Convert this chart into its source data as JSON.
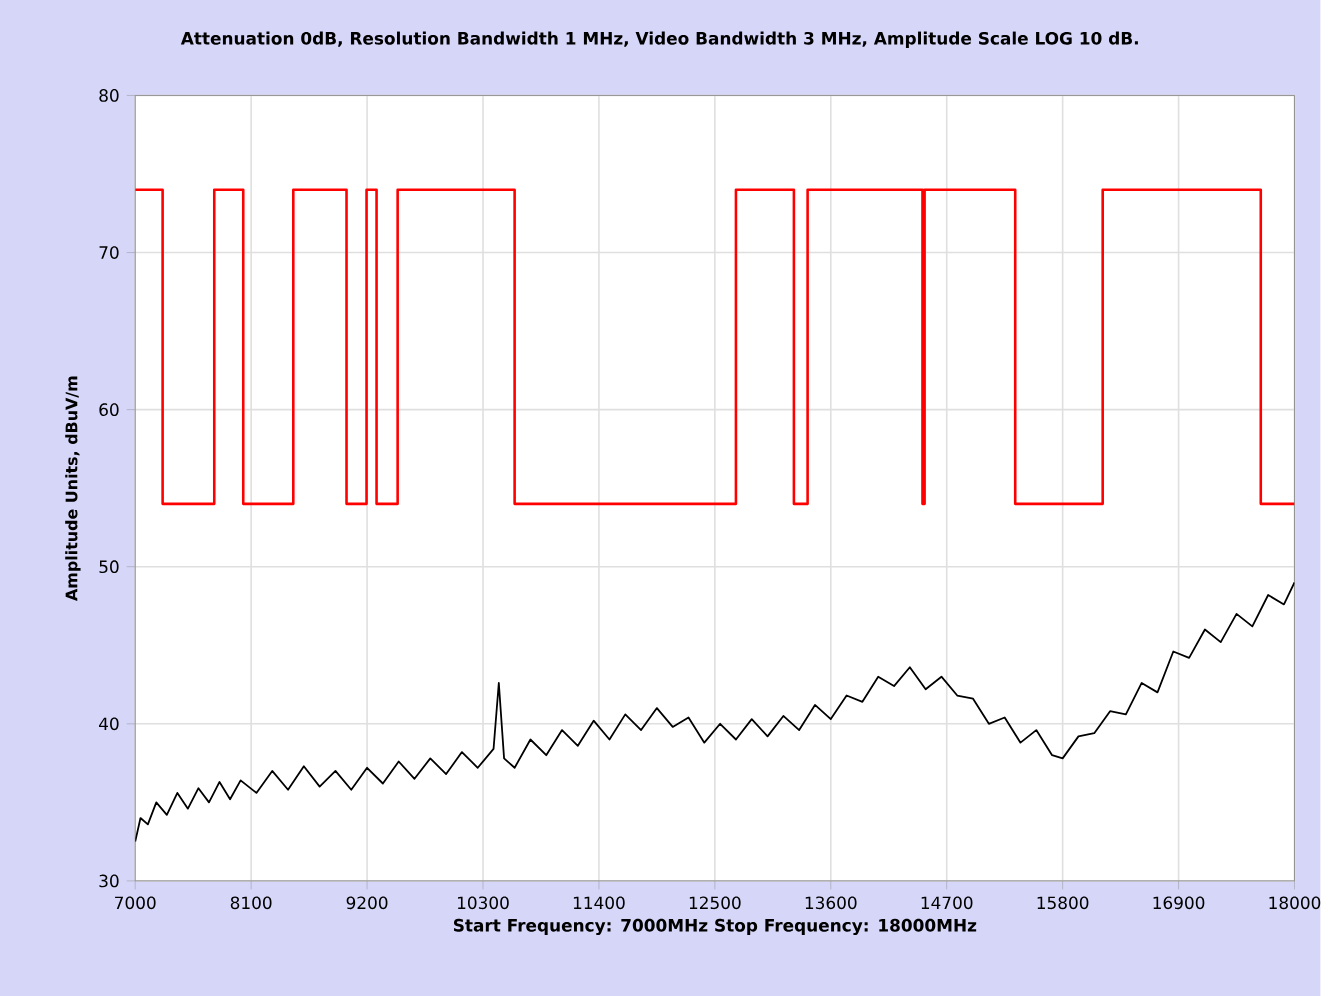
{
  "chart_data": {
    "type": "line",
    "title": "Attenuation 0dB, Resolution Bandwidth 1 MHz, Video Bandwidth 3 MHz, Amplitude Scale LOG 10 dB.",
    "xlabel": "Start Frequency: 7000MHz     Stop Frequency: 18000MHz",
    "ylabel": "Amplitude Units, dBuV/m",
    "xlim": [
      7000,
      18000
    ],
    "xticks": [
      7000,
      8100,
      9200,
      10300,
      11400,
      12500,
      13600,
      14700,
      15800,
      16900,
      18000
    ],
    "ylim": [
      30,
      80
    ],
    "yticks": [
      30,
      40,
      50,
      60,
      70,
      80
    ],
    "grid": true,
    "series": [
      {
        "type": "step",
        "color": "#ff0000",
        "x": [
          7000,
          7260,
          7750,
          8025,
          8500,
          9005,
          9195,
          9290,
          9490,
          10600,
          12700,
          13250,
          13380,
          14470,
          14490,
          15350,
          16180,
          17680,
          18000
        ],
        "values": [
          74,
          54,
          74,
          54,
          74,
          54,
          74,
          54,
          74,
          54,
          74,
          54,
          74,
          54,
          74,
          54,
          74,
          54,
          54
        ]
      },
      {
        "color": "#000000",
        "x": [
          7000,
          7050,
          7120,
          7200,
          7300,
          7400,
          7500,
          7600,
          7700,
          7800,
          7900,
          8000,
          8150,
          8300,
          8450,
          8600,
          8750,
          8900,
          9050,
          9200,
          9350,
          9500,
          9650,
          9800,
          9950,
          10100,
          10250,
          10400,
          10450,
          10500,
          10600,
          10750,
          10900,
          11050,
          11200,
          11350,
          11500,
          11650,
          11800,
          11950,
          12100,
          12250,
          12400,
          12550,
          12700,
          12850,
          13000,
          13150,
          13300,
          13450,
          13600,
          13750,
          13900,
          14050,
          14200,
          14350,
          14500,
          14650,
          14800,
          14950,
          15100,
          15250,
          15400,
          15550,
          15700,
          15800,
          15950,
          16100,
          16250,
          16400,
          16550,
          16700,
          16850,
          17000,
          17150,
          17300,
          17450,
          17600,
          17750,
          17900,
          18000
        ],
        "values": [
          32.5,
          34.0,
          33.6,
          35.0,
          34.2,
          35.6,
          34.6,
          35.9,
          35.0,
          36.3,
          35.2,
          36.4,
          35.6,
          37.0,
          35.8,
          37.3,
          36.0,
          37.0,
          35.8,
          37.2,
          36.2,
          37.6,
          36.5,
          37.8,
          36.8,
          38.2,
          37.2,
          38.4,
          42.6,
          37.8,
          37.2,
          39.0,
          38.0,
          39.6,
          38.6,
          40.2,
          39.0,
          40.6,
          39.6,
          41.0,
          39.8,
          40.4,
          38.8,
          40.0,
          39.0,
          40.3,
          39.2,
          40.5,
          39.6,
          41.2,
          40.3,
          41.8,
          41.4,
          43.0,
          42.4,
          43.6,
          42.2,
          43.0,
          41.8,
          41.6,
          40.0,
          40.4,
          38.8,
          39.6,
          38.0,
          37.8,
          39.2,
          39.4,
          40.8,
          40.6,
          42.6,
          42.0,
          44.6,
          44.2,
          46.0,
          45.2,
          47.0,
          46.2,
          48.2,
          47.6,
          49.0
        ]
      }
    ]
  }
}
